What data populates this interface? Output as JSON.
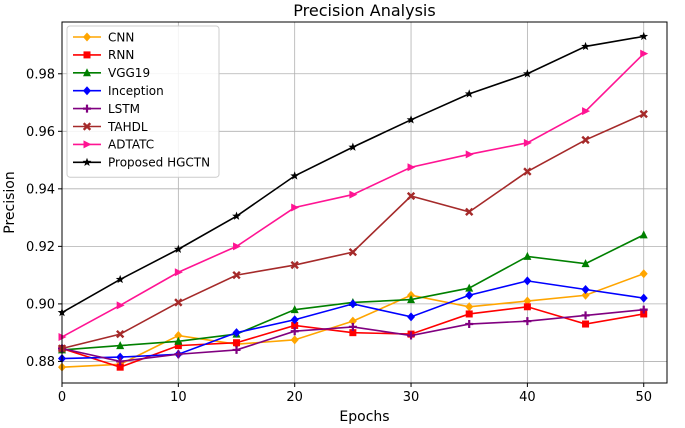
{
  "chart_data": {
    "type": "line",
    "title": "Precision Analysis",
    "xlabel": "Epochs",
    "ylabel": "Precision",
    "xlim": [
      0,
      52
    ],
    "ylim": [
      0.8725,
      0.998
    ],
    "xticks": [
      0,
      10,
      20,
      30,
      40,
      50
    ],
    "yticks": [
      0.88,
      0.9,
      0.92,
      0.94,
      0.96,
      0.98
    ],
    "ytick_labels": [
      "0.88",
      "0.90",
      "0.92",
      "0.94",
      "0.96",
      "0.98"
    ],
    "grid": true,
    "legend_position": "top-left",
    "x": [
      0,
      5,
      10,
      15,
      20,
      25,
      30,
      35,
      40,
      45,
      50
    ],
    "series": [
      {
        "name": "CNN",
        "color": "#ffa500",
        "marker": "diamond",
        "values": [
          0.878,
          0.879,
          0.889,
          0.886,
          0.8875,
          0.894,
          0.903,
          0.899,
          0.901,
          0.903,
          0.9105
        ]
      },
      {
        "name": "RNN",
        "color": "#ff0000",
        "marker": "square",
        "values": [
          0.8845,
          0.878,
          0.8855,
          0.8865,
          0.8925,
          0.89,
          0.8895,
          0.8965,
          0.899,
          0.893,
          0.8965
        ]
      },
      {
        "name": "VGG19",
        "color": "#008000",
        "marker": "triangle-up",
        "values": [
          0.884,
          0.8855,
          0.887,
          0.8895,
          0.898,
          0.9005,
          0.9015,
          0.9055,
          0.9165,
          0.914,
          0.924
        ]
      },
      {
        "name": "Inception",
        "color": "#0000ff",
        "marker": "diamond",
        "values": [
          0.881,
          0.8815,
          0.8825,
          0.89,
          0.8945,
          0.9,
          0.8955,
          0.903,
          0.908,
          0.905,
          0.902
        ]
      },
      {
        "name": "LSTM",
        "color": "#800080",
        "marker": "plus",
        "values": [
          0.8845,
          0.88,
          0.8825,
          0.884,
          0.8905,
          0.892,
          0.889,
          0.893,
          0.894,
          0.896,
          0.898
        ]
      },
      {
        "name": "TAHDL",
        "color": "#a52a2a",
        "marker": "x",
        "values": [
          0.8845,
          0.8895,
          0.9005,
          0.91,
          0.9135,
          0.918,
          0.9375,
          0.932,
          0.946,
          0.957,
          0.966
        ]
      },
      {
        "name": "ADTATC",
        "color": "#ff1493",
        "marker": "triangle-right",
        "values": [
          0.8885,
          0.8995,
          0.911,
          0.92,
          0.9335,
          0.938,
          0.9475,
          0.952,
          0.956,
          0.967,
          0.987
        ]
      },
      {
        "name": "Proposed HGCTN",
        "color": "#000000",
        "marker": "star",
        "values": [
          0.897,
          0.9085,
          0.919,
          0.9305,
          0.9445,
          0.9545,
          0.964,
          0.973,
          0.98,
          0.9895,
          0.993
        ]
      }
    ]
  }
}
